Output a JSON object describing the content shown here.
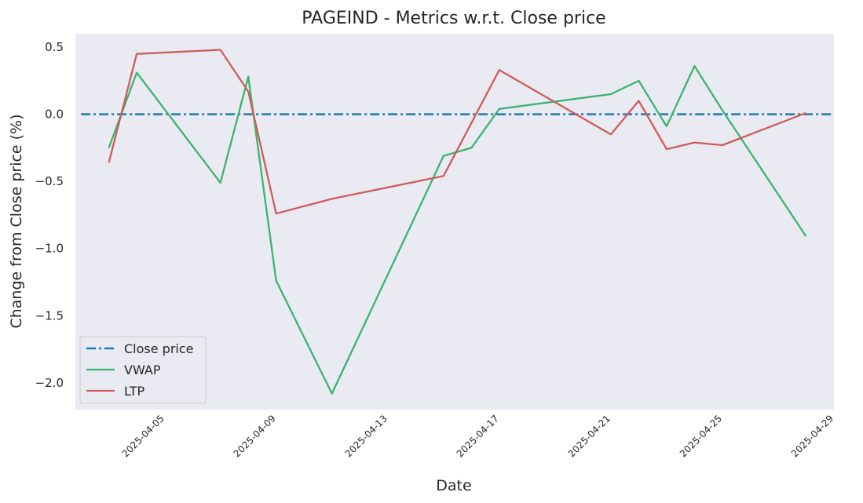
{
  "chart_data": {
    "type": "line",
    "title": "PAGEIND - Metrics w.r.t. Close price",
    "xlabel": "Date",
    "ylabel": "Change from Close price (%)",
    "x_ticks": [
      "2025-04-05",
      "2025-04-09",
      "2025-04-13",
      "2025-04-17",
      "2025-04-21",
      "2025-04-25",
      "2025-04-29"
    ],
    "y_ticks": [
      -2.0,
      -1.5,
      -1.0,
      -0.5,
      0.0,
      0.5
    ],
    "y_tick_labels": [
      "−2.0",
      "−1.5",
      "−1.0",
      "−0.5",
      "0.0",
      "0.5"
    ],
    "xlim": [
      "2025-04-02",
      "2025-04-29"
    ],
    "ylim": [
      -2.2,
      0.6
    ],
    "grid": false,
    "legend_position": "lower-left",
    "series": [
      {
        "name": "Close price",
        "color": "#1f77b4",
        "style": "dashdot",
        "points": [
          [
            "2025-04-02",
            0.0
          ],
          [
            "2025-04-29",
            0.0
          ]
        ]
      },
      {
        "name": "VWAP",
        "color": "#3cb371",
        "style": "solid",
        "points": [
          [
            "2025-04-03",
            -0.25
          ],
          [
            "2025-04-04",
            0.31
          ],
          [
            "2025-04-07",
            -0.51
          ],
          [
            "2025-04-08",
            0.28
          ],
          [
            "2025-04-09",
            -1.24
          ],
          [
            "2025-04-11",
            -2.08
          ],
          [
            "2025-04-15",
            -0.31
          ],
          [
            "2025-04-16",
            -0.25
          ],
          [
            "2025-04-17",
            0.04
          ],
          [
            "2025-04-21",
            0.15
          ],
          [
            "2025-04-22",
            0.25
          ],
          [
            "2025-04-23",
            -0.09
          ],
          [
            "2025-04-24",
            0.36
          ],
          [
            "2025-04-25",
            0.03
          ],
          [
            "2025-04-28",
            -0.91
          ]
        ]
      },
      {
        "name": "LTP",
        "color": "#cd5c5c",
        "style": "solid",
        "points": [
          [
            "2025-04-03",
            -0.36
          ],
          [
            "2025-04-04",
            0.45
          ],
          [
            "2025-04-07",
            0.48
          ],
          [
            "2025-04-08",
            0.17
          ],
          [
            "2025-04-09",
            -0.74
          ],
          [
            "2025-04-11",
            -0.63
          ],
          [
            "2025-04-15",
            -0.46
          ],
          [
            "2025-04-17",
            0.33
          ],
          [
            "2025-04-21",
            -0.15
          ],
          [
            "2025-04-22",
            0.1
          ],
          [
            "2025-04-23",
            -0.26
          ],
          [
            "2025-04-24",
            -0.21
          ],
          [
            "2025-04-25",
            -0.23
          ],
          [
            "2025-04-28",
            0.01
          ]
        ]
      }
    ]
  }
}
